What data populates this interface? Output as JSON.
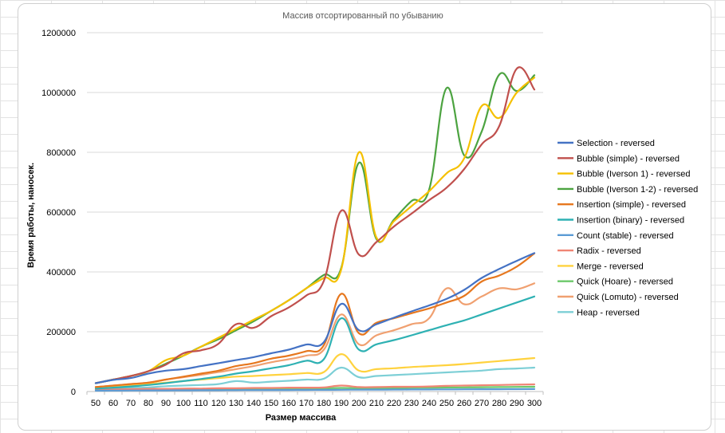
{
  "chart_data": {
    "type": "line",
    "title": "Массив отсортированный по убыванию",
    "xlabel": "Размер массива",
    "ylabel": "Время работы, наносек.",
    "ylim": [
      0,
      1200000
    ],
    "yticks": [
      "0",
      "200000",
      "400000",
      "600000",
      "800000",
      "1000000",
      "1200000"
    ],
    "x": [
      50,
      60,
      70,
      80,
      90,
      100,
      110,
      120,
      130,
      140,
      150,
      160,
      170,
      180,
      190,
      200,
      210,
      220,
      230,
      240,
      250,
      260,
      270,
      280,
      290,
      300
    ],
    "grid": "horizontal",
    "legend_position": "right",
    "series": [
      {
        "name": "Selection - reversed",
        "color": "#4472C4",
        "values": [
          28000,
          39000,
          45000,
          60000,
          70000,
          75000,
          85000,
          95000,
          105000,
          115000,
          128000,
          140000,
          157000,
          165000,
          293000,
          205000,
          225000,
          247000,
          268000,
          288000,
          310000,
          340000,
          380000,
          410000,
          437000,
          463000
        ]
      },
      {
        "name": "Bubble (simple) - reversed",
        "color": "#C0504D",
        "values": [
          28000,
          40000,
          52000,
          68000,
          90000,
          128000,
          138000,
          160000,
          225000,
          213000,
          252000,
          281000,
          321000,
          370000,
          605000,
          458000,
          500000,
          552000,
          595000,
          640000,
          682000,
          744000,
          827000,
          888000,
          1080000,
          1010000
        ]
      },
      {
        "name": "Bubble (Iverson 1) - reversed",
        "color": "#F5C000",
        "values": [
          28000,
          40000,
          52000,
          68000,
          105000,
          120000,
          150000,
          180000,
          210000,
          240000,
          270000,
          305000,
          345000,
          380000,
          410000,
          800000,
          515000,
          570000,
          620000,
          670000,
          730000,
          780000,
          955000,
          915000,
          1000000,
          1050000
        ]
      },
      {
        "name": "Bubble (Iverson 1-2) - reversed",
        "color": "#4CA340",
        "values": [
          28000,
          40000,
          52000,
          68000,
          93000,
          120000,
          150000,
          175000,
          205000,
          235000,
          270000,
          305000,
          345000,
          390000,
          415000,
          765000,
          510000,
          575000,
          637000,
          675000,
          1015000,
          790000,
          870000,
          1060000,
          1005000,
          1058000
        ]
      },
      {
        "name": "Insertion (simple) - reversed",
        "color": "#E6771E",
        "values": [
          15000,
          20000,
          25000,
          30000,
          40000,
          50000,
          60000,
          70000,
          85000,
          95000,
          110000,
          120000,
          135000,
          155000,
          327000,
          195000,
          230000,
          245000,
          262000,
          278000,
          298000,
          320000,
          368000,
          388000,
          418000,
          462000
        ]
      },
      {
        "name": "Insertion (binary) - reversed",
        "color": "#2EB1B3",
        "values": [
          10000,
          13000,
          17000,
          22000,
          28000,
          35000,
          42000,
          50000,
          60000,
          68000,
          78000,
          88000,
          103000,
          108000,
          245000,
          140000,
          158000,
          172000,
          188000,
          205000,
          222000,
          238000,
          258000,
          278000,
          298000,
          318000
        ]
      },
      {
        "name": "Count (stable) - reversed",
        "color": "#5B9BD5",
        "values": [
          3000,
          3200,
          3400,
          3600,
          3800,
          4000,
          4200,
          4400,
          4600,
          4800,
          5000,
          5200,
          5400,
          5600,
          6000,
          6200,
          6400,
          6600,
          6800,
          7000,
          7200,
          7400,
          7600,
          7800,
          8000,
          8200
        ]
      },
      {
        "name": "Radix - reversed",
        "color": "#F08575",
        "values": [
          6000,
          7000,
          8000,
          9000,
          9000,
          10000,
          10000,
          11000,
          11000,
          12000,
          12000,
          13000,
          13000,
          14000,
          20000,
          15000,
          15000,
          16000,
          16000,
          17000,
          19000,
          20000,
          21000,
          22000,
          23000,
          24000
        ]
      },
      {
        "name": "Merge - reversed",
        "color": "#FFD23E",
        "values": [
          15000,
          18000,
          20000,
          25000,
          30000,
          35000,
          40000,
          45000,
          50000,
          52000,
          55000,
          58000,
          62000,
          65000,
          125000,
          70000,
          75000,
          78000,
          82000,
          85000,
          88000,
          92000,
          97000,
          102000,
          107000,
          112000
        ]
      },
      {
        "name": "Quick (Hoare) - reversed",
        "color": "#6CC86A",
        "values": [
          4000,
          4500,
          5000,
          5500,
          6000,
          6500,
          7000,
          7500,
          8000,
          8500,
          9000,
          9500,
          10000,
          10500,
          12000,
          11000,
          11500,
          12000,
          12500,
          13000,
          13500,
          14000,
          14500,
          15000,
          15500,
          16000
        ]
      },
      {
        "name": "Quick (Lomuto) - reversed",
        "color": "#F0A070",
        "values": [
          15000,
          20000,
          25000,
          30000,
          40000,
          48000,
          56000,
          65000,
          75000,
          85000,
          98000,
          108000,
          120000,
          140000,
          258000,
          158000,
          188000,
          205000,
          225000,
          245000,
          345000,
          292000,
          318000,
          345000,
          342000,
          362000
        ]
      },
      {
        "name": "Heap - reversed",
        "color": "#7DCFD6",
        "values": [
          8000,
          10000,
          12000,
          14000,
          18000,
          20000,
          22000,
          25000,
          35000,
          30000,
          33000,
          36000,
          40000,
          43000,
          80000,
          48000,
          52000,
          55000,
          58000,
          61000,
          64000,
          67000,
          70000,
          75000,
          77000,
          80000
        ]
      }
    ]
  }
}
